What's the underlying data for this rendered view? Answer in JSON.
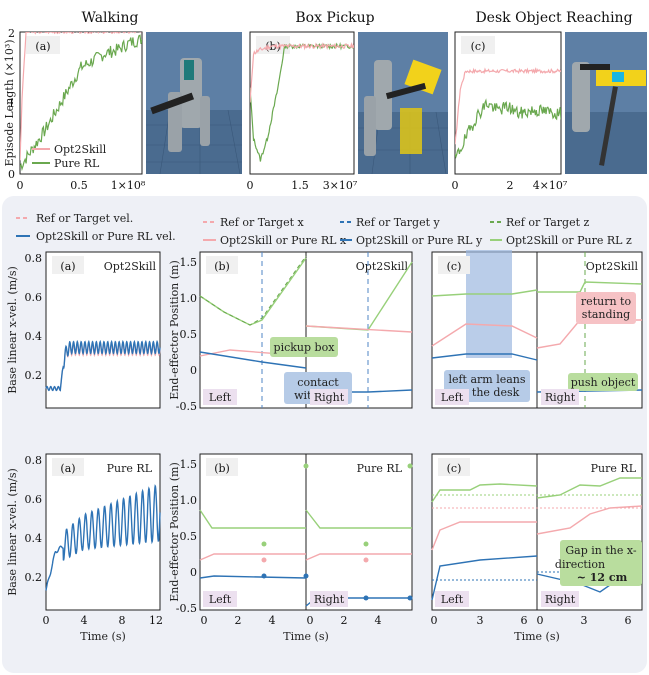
{
  "colors": {
    "pink": "#f4a9ad",
    "green": "#86c46a",
    "green_dark": "#6aa84f",
    "blue": "#2e73b5",
    "blue_dash": "#4f86c6",
    "lgreen": "#98d07a",
    "bg": "#eef0f6",
    "panel": "#ffffff",
    "tagbg": "#ece0ef"
  },
  "row1": {
    "titles": [
      "Walking",
      "Box Pickup",
      "Desk Object Reaching"
    ],
    "ylabel": "Episode Length (×10³)",
    "legend": [
      "Opt2Skill",
      "Pure RL"
    ],
    "panels": [
      {
        "tag": "(a)",
        "xticks": [
          "0",
          "0.5",
          "1×10⁸"
        ],
        "yticks": [
          "0",
          "1",
          "2"
        ]
      },
      {
        "tag": "(b)",
        "xticks": [
          "0",
          "1.5",
          "3×10⁷"
        ]
      },
      {
        "tag": "(c)",
        "xticks": [
          "0",
          "2",
          "4×10⁷"
        ]
      }
    ]
  },
  "legend2": {
    "col1": [
      "Ref or Target vel.",
      "Opt2Skill or Pure RL vel."
    ],
    "col2": [
      "Ref or Target x",
      "Opt2Skill or Pure RL x"
    ],
    "col3": [
      "Ref or Target y",
      "Opt2Skill or Pure RL y"
    ],
    "col4": [
      "Ref or Target z",
      "Opt2Skill or Pure RL z"
    ]
  },
  "row2": {
    "a": {
      "tag": "(a)",
      "name": "Opt2Skill",
      "ylabel": "Base linear x-vel. (m/s)",
      "yticks": [
        "0.2",
        "0.4",
        "0.6",
        "0.8"
      ]
    },
    "b": {
      "tag": "(b)",
      "name": "Opt2Skill",
      "ylabel": "End-effector Position (m)",
      "yticks": [
        "-0.5",
        "0",
        "0.5",
        "1.0",
        "1.5"
      ],
      "left": "Left",
      "right": "Right",
      "ann1": "pickup box",
      "ann2a": "contact",
      "ann2b": "with box"
    },
    "c": {
      "tag": "(c)",
      "name": "Opt2Skill",
      "left": "Left",
      "right": "Right",
      "ann1a": "return to",
      "ann1b": "standing",
      "ann2": "push object",
      "ann3a": "left arm leans",
      "ann3b": "on the desk"
    }
  },
  "row3": {
    "a": {
      "tag": "(a)",
      "name": "Pure RL",
      "ylabel": "Base linear x-vel. (m/s)",
      "yticks": [
        "0.2",
        "0.4",
        "0.6",
        "0.8"
      ],
      "xticks": [
        "0",
        "4",
        "8",
        "12"
      ],
      "xlabel": "Time (s)"
    },
    "b": {
      "tag": "(b)",
      "name": "Pure RL",
      "ylabel": "End-effector Position (m)",
      "yticks": [
        "-0.5",
        "0",
        "0.5",
        "1.0",
        "1.5"
      ],
      "xticks": [
        "0",
        "2",
        "4",
        "0",
        "2",
        "4"
      ],
      "xlabel": "Time (s)",
      "left": "Left",
      "right": "Right"
    },
    "c": {
      "tag": "(c)",
      "name": "Pure RL",
      "xticks": [
        "0",
        "3",
        "6",
        "0",
        "3",
        "6"
      ],
      "xlabel": "Time (s)",
      "left": "Left",
      "right": "Right",
      "ann_a": "Gap in the x-",
      "ann_b": "direction",
      "ann_c": "~ 12 cm"
    }
  },
  "chart_data": [
    {
      "type": "line",
      "panel": "Walking episode length",
      "xlim": [
        0,
        1.0
      ],
      "ylim": [
        0,
        2
      ],
      "series": [
        {
          "name": "Opt2Skill",
          "x": [
            0,
            0.02,
            0.05,
            0.08,
            0.1,
            0.15,
            0.3,
            0.6,
            1.0
          ],
          "y": [
            0.2,
            1.2,
            2.0,
            2.0,
            2.0,
            2.0,
            2.0,
            2.0,
            2.0
          ]
        },
        {
          "name": "Pure RL",
          "x": [
            0,
            0.1,
            0.2,
            0.3,
            0.4,
            0.5,
            0.6,
            0.7,
            0.8,
            0.9,
            1.0
          ],
          "y": [
            0.1,
            0.35,
            0.6,
            0.9,
            1.2,
            1.5,
            1.6,
            1.7,
            1.75,
            1.85,
            1.9
          ]
        }
      ]
    },
    {
      "type": "line",
      "panel": "Box Pickup episode length",
      "xlim": [
        0,
        3
      ],
      "ylim": [
        0,
        2
      ],
      "series": [
        {
          "name": "Opt2Skill",
          "x": [
            0,
            0.1,
            0.3,
            0.6,
            1.0,
            1.5,
            2.0,
            3.0
          ],
          "y": [
            1.0,
            1.7,
            1.75,
            1.8,
            1.8,
            1.8,
            1.8,
            1.8
          ]
        },
        {
          "name": "Pure RL",
          "x": [
            0,
            0.1,
            0.3,
            0.5,
            0.8,
            1.0,
            1.5,
            2.0,
            3.0
          ],
          "y": [
            1.2,
            0.5,
            0.2,
            0.5,
            1.2,
            1.8,
            1.8,
            1.8,
            1.8
          ]
        }
      ]
    },
    {
      "type": "line",
      "panel": "Desk Object Reaching episode length",
      "xlim": [
        0,
        4
      ],
      "ylim": [
        0,
        2
      ],
      "series": [
        {
          "name": "Opt2Skill",
          "x": [
            0,
            0.2,
            0.4,
            0.8,
            1.2,
            2.0,
            3.0,
            4.0
          ],
          "y": [
            0.4,
            1.2,
            1.45,
            1.45,
            1.45,
            1.45,
            1.45,
            1.45
          ]
        },
        {
          "name": "Pure RL",
          "x": [
            0,
            0.4,
            0.8,
            1.2,
            1.6,
            2.0,
            2.4,
            3.0,
            4.0
          ],
          "y": [
            0.2,
            0.5,
            0.8,
            1.0,
            0.9,
            0.95,
            0.85,
            0.9,
            0.85
          ]
        }
      ]
    },
    {
      "type": "line",
      "panel": "(a) Opt2Skill base vel.",
      "xlim": [
        0,
        12
      ],
      "ylim": [
        0.1,
        0.9
      ],
      "series": [
        {
          "name": "Ref or Target vel.",
          "x": [
            0,
            1.5,
            2,
            2.5,
            12
          ],
          "y": [
            0.2,
            0.2,
            0.38,
            0.4,
            0.4
          ]
        },
        {
          "name": "Opt2Skill or Pure RL vel.",
          "x": [
            0,
            1.5,
            2,
            2.5,
            12
          ],
          "y": [
            0.2,
            0.2,
            0.38,
            0.41,
            0.41
          ]
        }
      ]
    },
    {
      "type": "line",
      "panel": "(a) Pure RL base vel.",
      "xlim": [
        0,
        12
      ],
      "ylim": [
        0.1,
        0.9
      ],
      "series": [
        {
          "name": "Opt2Skill or Pure RL vel.",
          "x": [
            0,
            1,
            4,
            8,
            12
          ],
          "y": [
            0.2,
            0.4,
            0.5,
            0.55,
            0.6
          ]
        }
      ]
    }
  ]
}
